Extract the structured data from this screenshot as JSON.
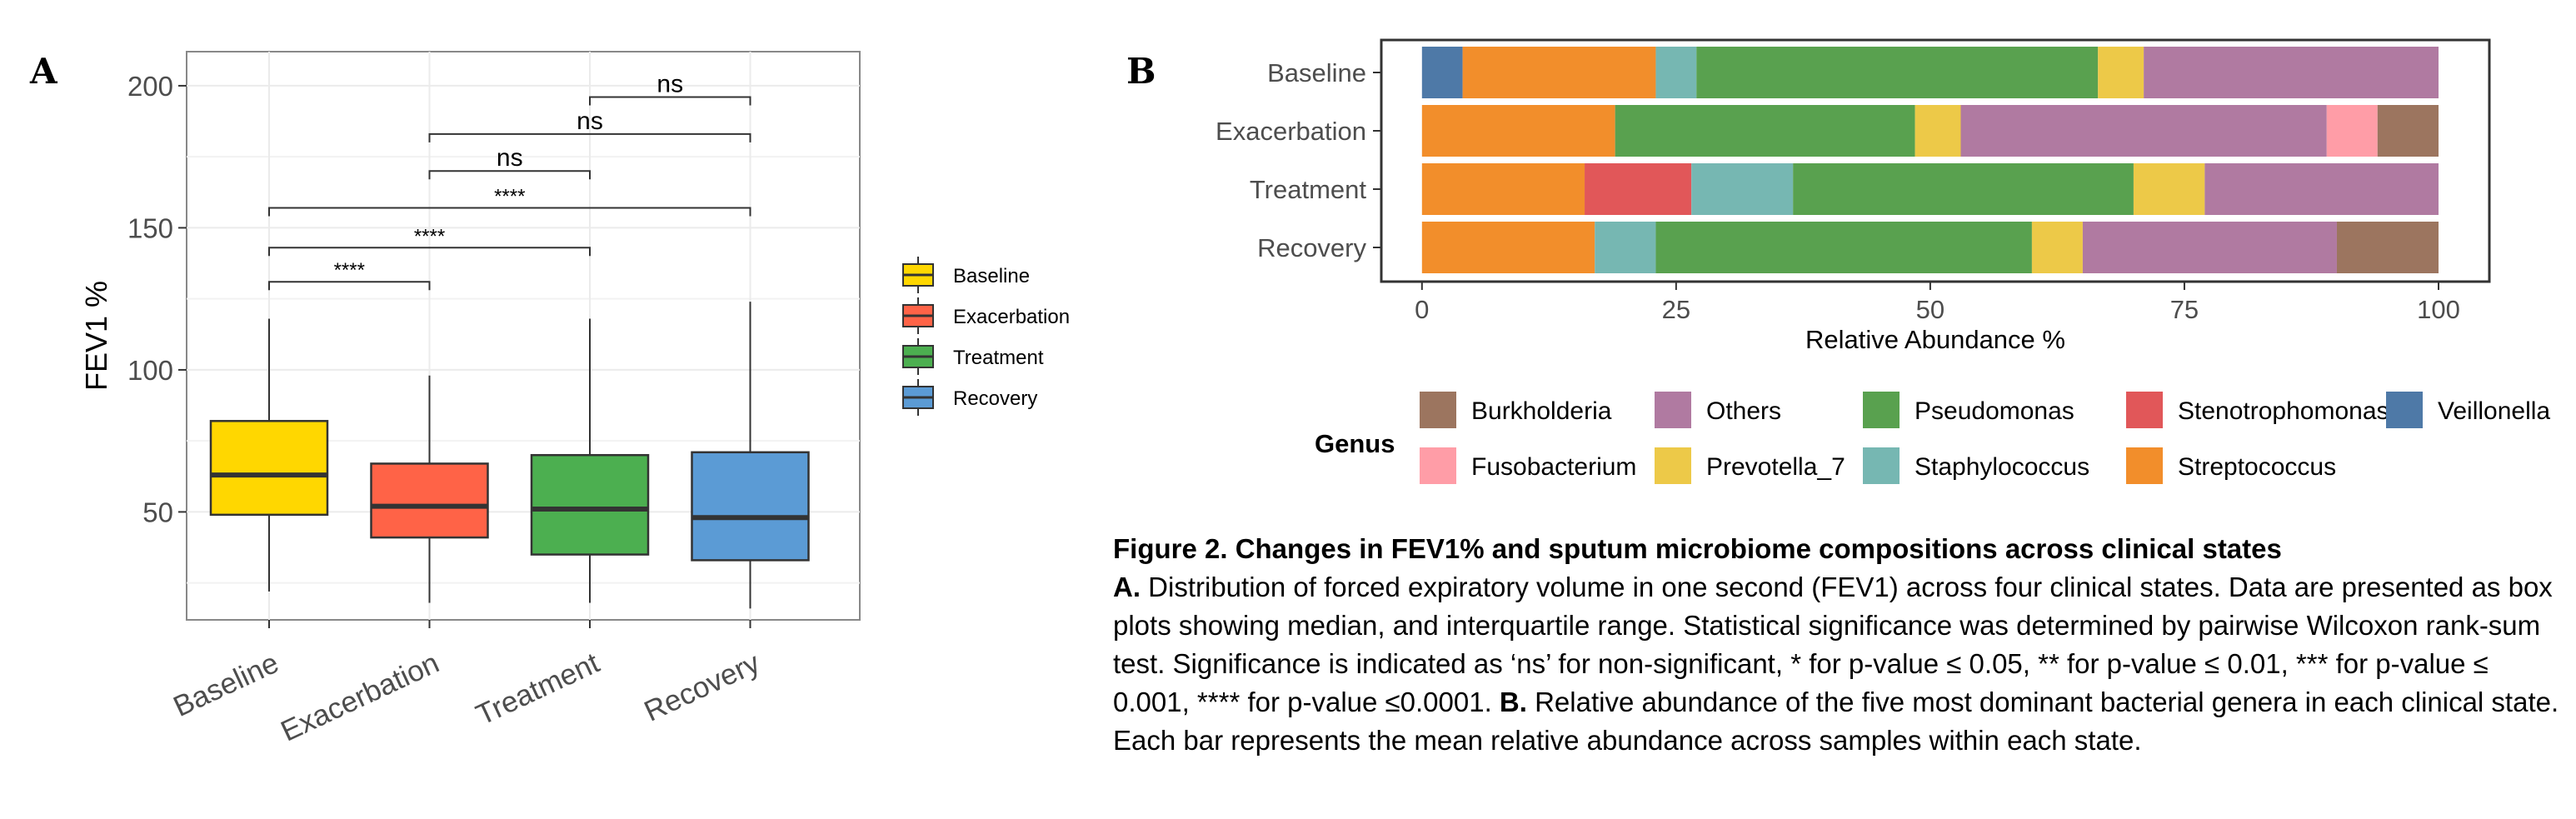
{
  "panel_a": {
    "letter": "A",
    "ylabel": "FEV1 %",
    "legend": [
      {
        "label": "Baseline",
        "color": "#FFD700"
      },
      {
        "label": "Exacerbation",
        "color": "#FF6347"
      },
      {
        "label": "Treatment",
        "color": "#4CAF50"
      },
      {
        "label": "Recovery",
        "color": "#5B9BD5"
      }
    ]
  },
  "panel_b": {
    "letter": "B",
    "legend_title": "Genus"
  },
  "chart_data": [
    {
      "type": "box",
      "panel": "A",
      "title": "",
      "xlabel": "",
      "ylabel": "FEV1 %",
      "ylim": [
        12,
        212
      ],
      "yticks": [
        50,
        100,
        150,
        200
      ],
      "grid": true,
      "legend_position": "right",
      "categories": [
        "Baseline",
        "Exacerbation",
        "Treatment",
        "Recovery"
      ],
      "boxes": [
        {
          "name": "Baseline",
          "color": "#FFD700",
          "whisker_low": 22,
          "q1": 49,
          "median": 63,
          "q3": 82,
          "whisker_high": 118
        },
        {
          "name": "Exacerbation",
          "color": "#FF6347",
          "whisker_low": 18,
          "q1": 41,
          "median": 52,
          "q3": 67,
          "whisker_high": 98
        },
        {
          "name": "Treatment",
          "color": "#4CAF50",
          "whisker_low": 18,
          "q1": 35,
          "median": 51,
          "q3": 70,
          "whisker_high": 118
        },
        {
          "name": "Recovery",
          "color": "#5B9BD5",
          "whisker_low": 16,
          "q1": 33,
          "median": 48,
          "q3": 71,
          "whisker_high": 124
        }
      ],
      "significance": [
        {
          "from": "Baseline",
          "to": "Exacerbation",
          "label": "****",
          "y": 131
        },
        {
          "from": "Baseline",
          "to": "Treatment",
          "label": "****",
          "y": 143
        },
        {
          "from": "Baseline",
          "to": "Recovery",
          "label": "****",
          "y": 157
        },
        {
          "from": "Exacerbation",
          "to": "Treatment",
          "label": "ns",
          "y": 170
        },
        {
          "from": "Exacerbation",
          "to": "Recovery",
          "label": "ns",
          "y": 183
        },
        {
          "from": "Treatment",
          "to": "Recovery",
          "label": "ns",
          "y": 196
        }
      ]
    },
    {
      "type": "bar",
      "orientation": "horizontal",
      "stacked": true,
      "panel": "B",
      "title": "",
      "xlabel": "Relative Abundance %",
      "ylabel": "",
      "xlim": [
        -4,
        105
      ],
      "xticks": [
        0,
        25,
        50,
        75,
        100
      ],
      "legend_title": "Genus",
      "legend_position": "bottom",
      "categories": [
        "Baseline",
        "Exacerbation",
        "Treatment",
        "Recovery"
      ],
      "series": [
        {
          "name": "Veillonella",
          "color": "#4E79A7",
          "values": [
            4,
            0,
            0,
            0
          ]
        },
        {
          "name": "Streptococcus",
          "color": "#F28E2B",
          "values": [
            19,
            19,
            16,
            17
          ]
        },
        {
          "name": "Stenotrophomonas",
          "color": "#E15759",
          "values": [
            0,
            0,
            10.5,
            0
          ]
        },
        {
          "name": "Staphylococcus",
          "color": "#76B7B2",
          "values": [
            4,
            0,
            10,
            6
          ]
        },
        {
          "name": "Pseudomonas",
          "color": "#59A14F",
          "values": [
            39.5,
            29.5,
            33.5,
            37
          ]
        },
        {
          "name": "Prevotella_7",
          "color": "#EDC948",
          "values": [
            4.5,
            4.5,
            7,
            5
          ]
        },
        {
          "name": "Others",
          "color": "#B07AA1",
          "values": [
            29,
            36,
            23,
            25
          ]
        },
        {
          "name": "Fusobacterium",
          "color": "#FF9DA7",
          "values": [
            0,
            5,
            0,
            0
          ]
        },
        {
          "name": "Burkholderia",
          "color": "#9C755F",
          "values": [
            0,
            6,
            0,
            10
          ]
        }
      ],
      "legend_order": [
        "Burkholderia",
        "Others",
        "Pseudomonas",
        "Stenotrophomonas",
        "Veillonella",
        "Fusobacterium",
        "Prevotella_7",
        "Staphylococcus",
        "Streptococcus"
      ]
    }
  ],
  "caption": {
    "title": "Figure 2. Changes in FEV1% and sputum microbiome compositions across clinical states",
    "a_label": "A.",
    "a_text": " Distribution of forced expiratory volume in one second (FEV1) across four clinical states. Data are presented as box plots showing median, and interquartile range. Statistical significance was determined by pairwise Wilcoxon rank-sum test. Significance is indicated as ‘ns’ for non-significant, * for p-value ≤ 0.05, ** for p-value ≤ 0.01, *** for p-value ≤ 0.001, **** for p-value ≤0.0001. ",
    "b_label": "B.",
    "b_text": " Relative abundance of the five most dominant bacterial genera in each clinical state. Each bar represents the mean relative abundance across samples within each state."
  }
}
